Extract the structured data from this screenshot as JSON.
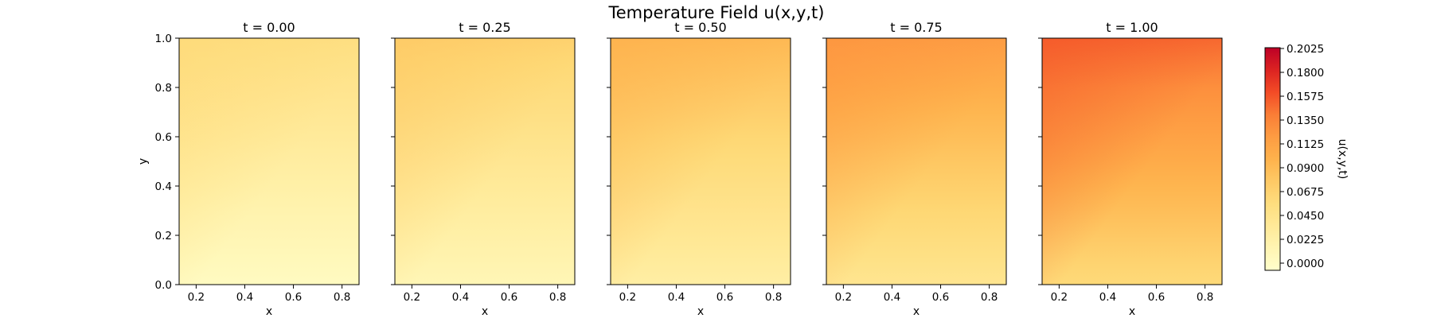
{
  "chart_data": {
    "type": "heatmap",
    "title": "Temperature Field u(x,y,t)",
    "xlabel": "x",
    "ylabel": "y",
    "colorbar_label": "u(x,y,t)",
    "colormap": "YlOrRd",
    "xlim": [
      0.13,
      0.87
    ],
    "ylim": [
      0.0,
      1.0
    ],
    "xticks": [
      "0.2",
      "0.4",
      "0.6",
      "0.8"
    ],
    "yticks": [
      "0.0",
      "0.2",
      "0.4",
      "0.6",
      "0.8",
      "1.0"
    ],
    "colorbar_range": [
      0.0,
      0.2025
    ],
    "colorbar_ticks": [
      "0.0000",
      "0.0225",
      "0.0450",
      "0.0675",
      "0.0900",
      "0.1125",
      "0.1350",
      "0.1575",
      "0.1800",
      "0.2025"
    ],
    "panels": [
      {
        "title": "t = 0.00",
        "t": 0.0,
        "corners": {
          "bottom_left": 0.005,
          "bottom_right": 0.012,
          "top_left": 0.068,
          "top_right": 0.048
        }
      },
      {
        "title": "t = 0.25",
        "t": 0.25,
        "corners": {
          "bottom_left": 0.012,
          "bottom_right": 0.022,
          "top_left": 0.085,
          "top_right": 0.062
        }
      },
      {
        "title": "t = 0.50",
        "t": 0.5,
        "corners": {
          "bottom_left": 0.024,
          "bottom_right": 0.038,
          "top_left": 0.105,
          "top_right": 0.085
        }
      },
      {
        "title": "t = 0.75",
        "t": 0.75,
        "corners": {
          "bottom_left": 0.038,
          "bottom_right": 0.056,
          "top_left": 0.13,
          "top_right": 0.11
        }
      },
      {
        "title": "t = 1.00",
        "t": 1.0,
        "corners": {
          "bottom_left": 0.055,
          "bottom_right": 0.075,
          "top_left": 0.16,
          "top_right": 0.14
        }
      }
    ]
  }
}
